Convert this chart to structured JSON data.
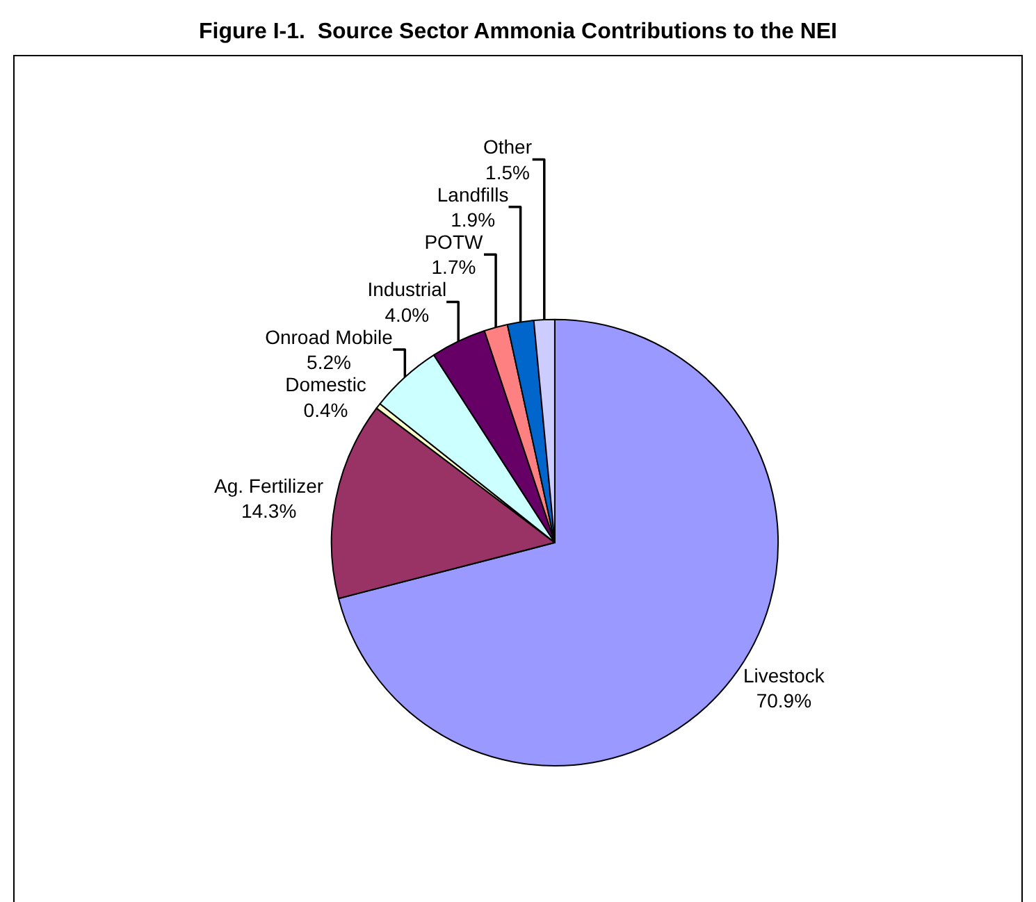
{
  "chart_data": {
    "type": "pie",
    "title": "Figure I-1.  Source Sector Ammonia Contributions to the NEI",
    "categories": [
      "Livestock",
      "Ag. Fertilizer",
      "Domestic",
      "Onroad Mobile",
      "Industrial",
      "POTW",
      "Landfills",
      "Other"
    ],
    "values": [
      70.9,
      14.3,
      0.4,
      5.2,
      4.0,
      1.7,
      1.9,
      1.5
    ],
    "value_labels": [
      "70.9%",
      "14.3%",
      "0.4%",
      "5.2%",
      "4.0%",
      "1.7%",
      "1.9%",
      "1.5%"
    ],
    "colors": [
      "#9999ff",
      "#993366",
      "#ffffcc",
      "#ccffff",
      "#660066",
      "#ff8080",
      "#0066cc",
      "#ccccff"
    ],
    "legend": false
  }
}
